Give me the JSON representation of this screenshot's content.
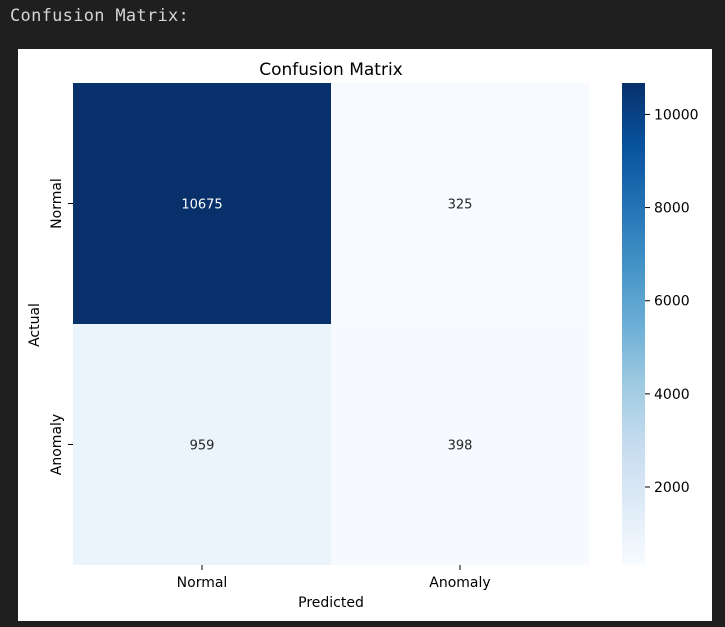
{
  "output_label": "Confusion Matrix:",
  "chart_data": {
    "type": "heatmap",
    "title": "Confusion Matrix",
    "xlabel": "Predicted",
    "ylabel": "Actual",
    "x_categories": [
      "Normal",
      "Anomaly"
    ],
    "y_categories": [
      "Normal",
      "Anomaly"
    ],
    "values": [
      [
        10675,
        325
      ],
      [
        959,
        398
      ]
    ],
    "colormap": "Blues",
    "colorbar": {
      "min": 325,
      "max": 10675,
      "ticks": [
        2000,
        4000,
        6000,
        8000,
        10000
      ]
    },
    "colors": {
      "low": "#f7fbff",
      "high": "#08306b"
    }
  }
}
